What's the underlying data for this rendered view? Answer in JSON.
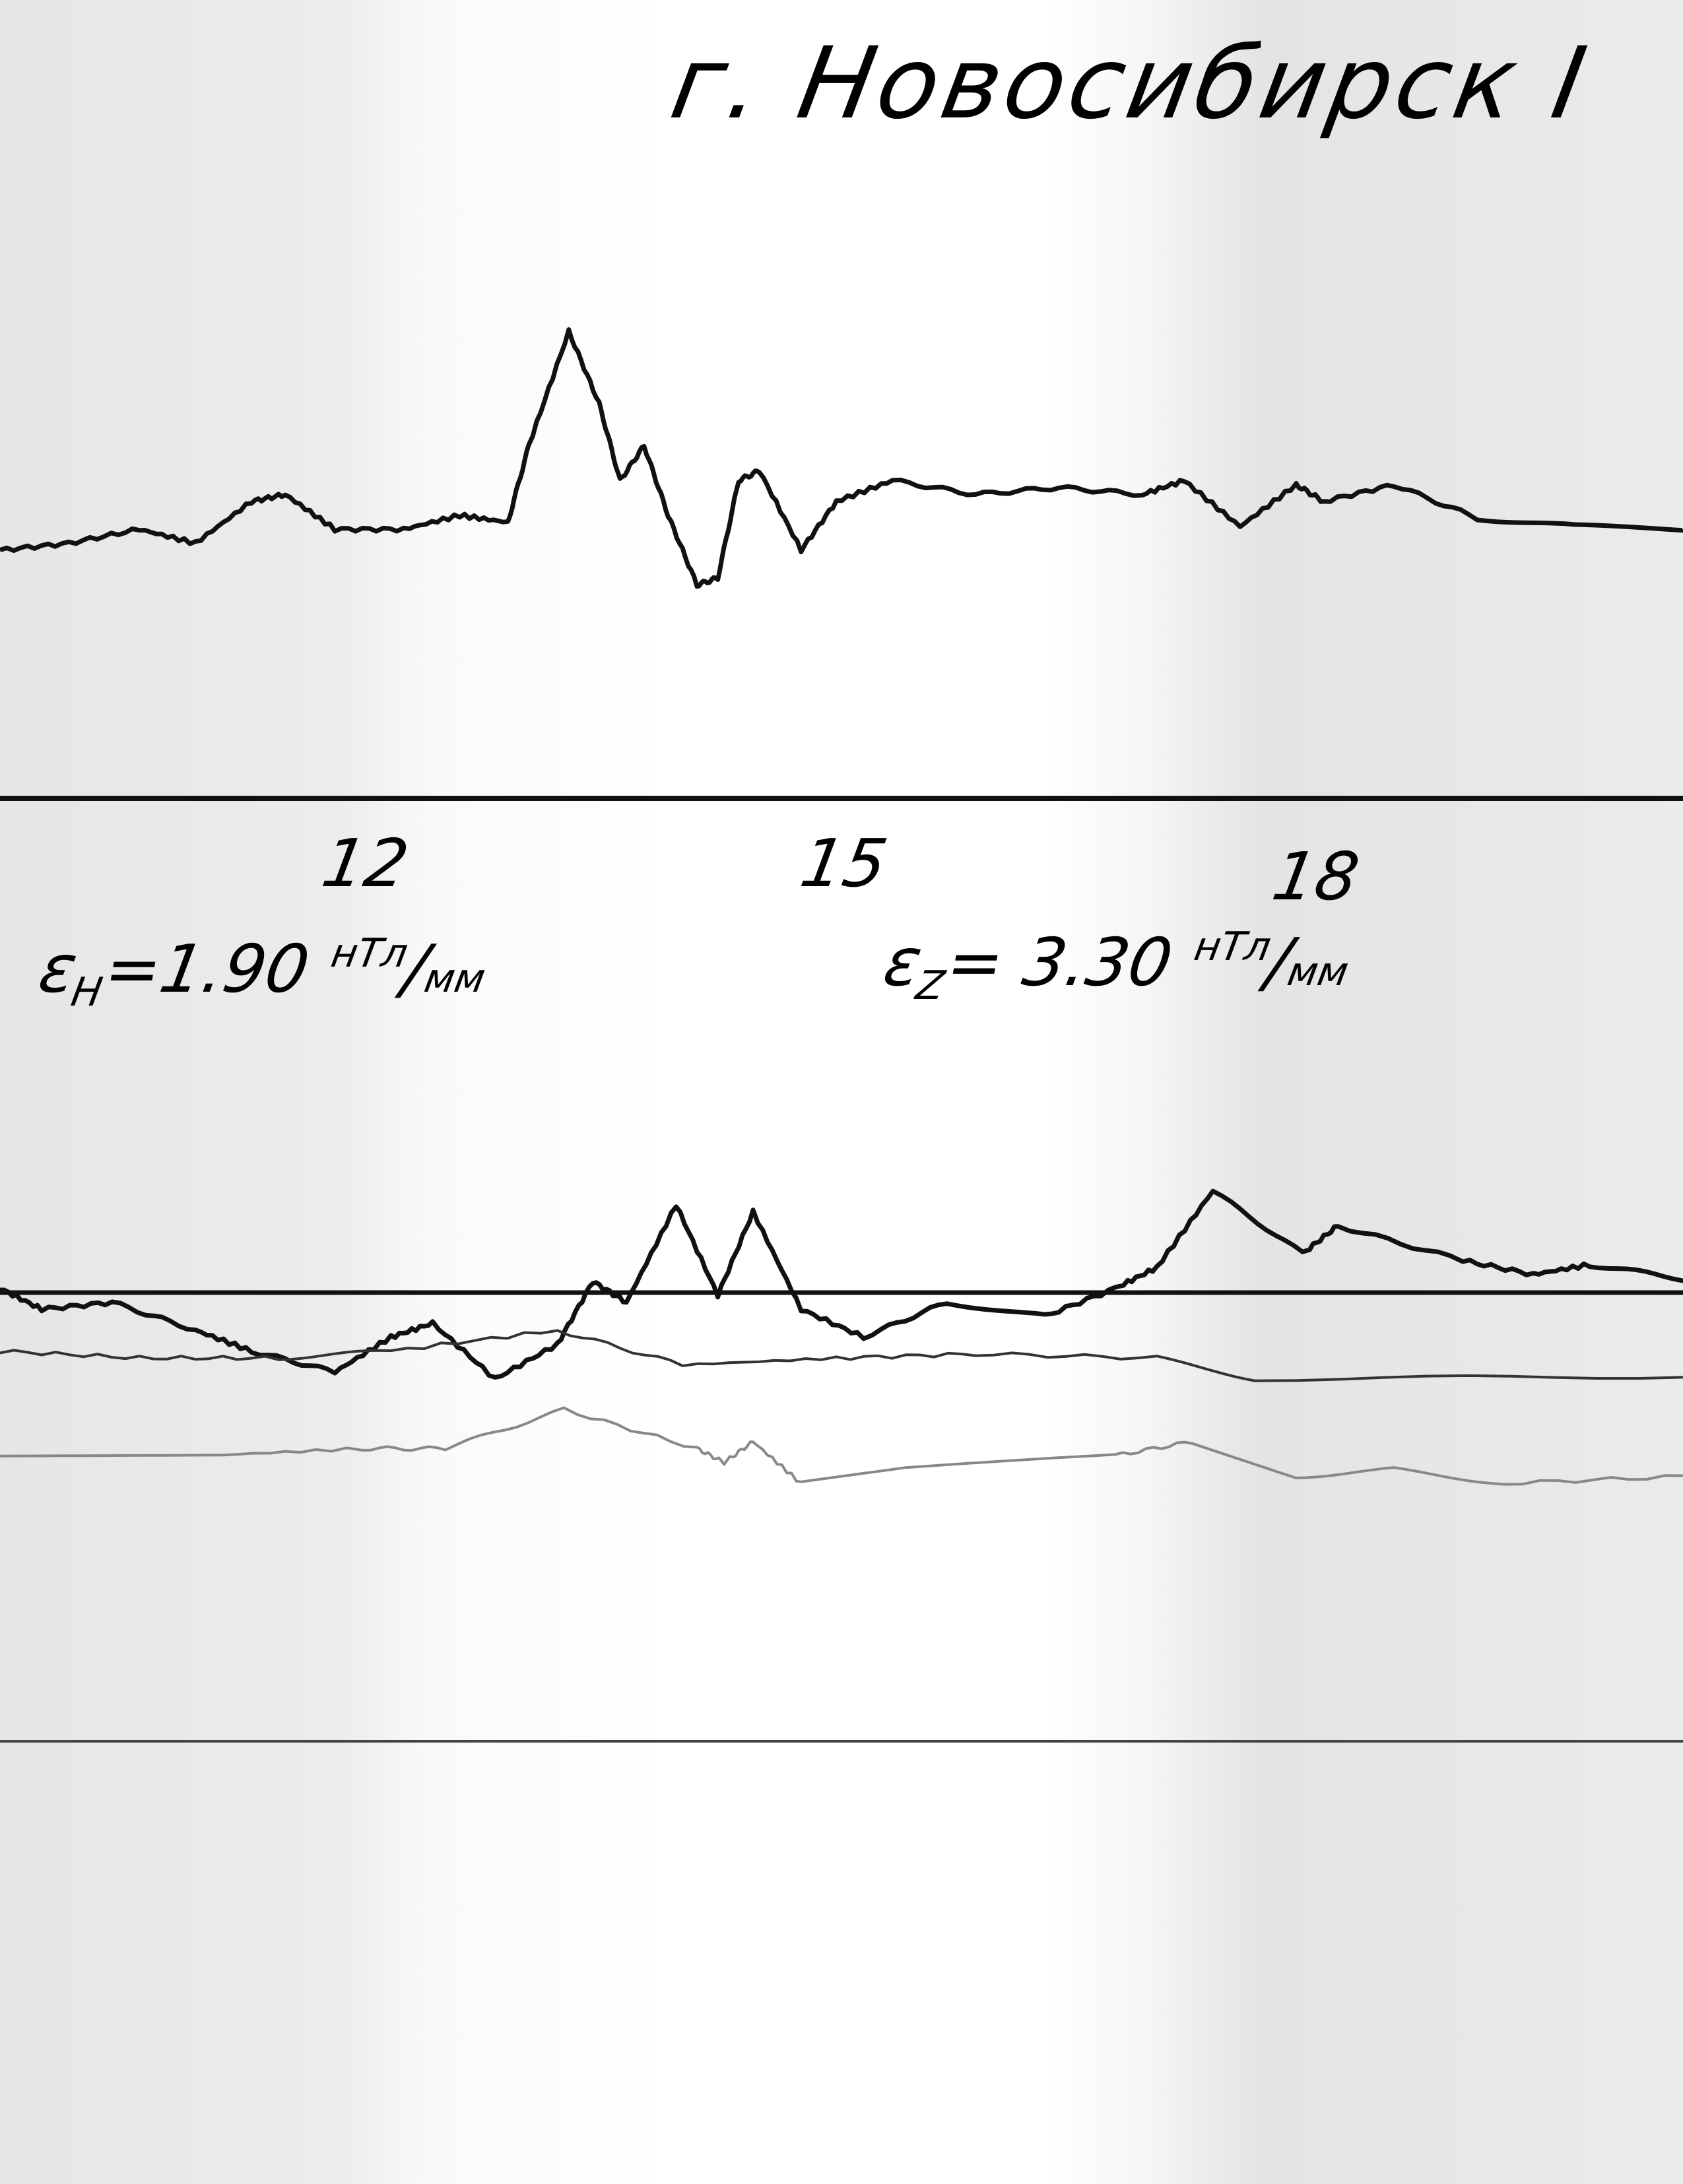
{
  "chart_data": {
    "type": "line",
    "title": "г. Новосибирск I",
    "x_ticks": [
      "12",
      "15",
      "18"
    ],
    "x_tick_values": [
      12,
      15,
      18
    ],
    "xlim": [
      9.78,
      20.28
    ],
    "grid": false,
    "scales": [
      {
        "symbol": "ε",
        "sub": "H",
        "eq": "=1.90",
        "unit_num": "нТл",
        "unit_den": "мм"
      },
      {
        "symbol": "ε",
        "sub": "Z",
        "eq": "= 3.30",
        "unit_num": "нТл",
        "unit_den": "мм"
      }
    ],
    "series": [
      {
        "points": [
          [
            9.78,
            -15
          ],
          [
            10.21,
            -10
          ],
          [
            10.65,
            0
          ],
          [
            11.0,
            -10
          ],
          [
            11.35,
            20
          ],
          [
            11.56,
            25
          ],
          [
            11.87,
            0
          ],
          [
            12.3,
            0
          ],
          [
            12.65,
            10
          ],
          [
            12.95,
            5
          ],
          [
            13.08,
            60
          ],
          [
            13.33,
            142
          ],
          [
            13.52,
            90
          ],
          [
            13.65,
            35
          ],
          [
            13.8,
            60
          ],
          [
            13.95,
            10
          ],
          [
            14.13,
            -40
          ],
          [
            14.26,
            -35
          ],
          [
            14.39,
            35
          ],
          [
            14.52,
            42
          ],
          [
            14.78,
            -15
          ],
          [
            15.0,
            20
          ],
          [
            15.35,
            35
          ],
          [
            15.87,
            25
          ],
          [
            16.39,
            30
          ],
          [
            16.91,
            25
          ],
          [
            17.17,
            35
          ],
          [
            17.52,
            2
          ],
          [
            17.87,
            32
          ],
          [
            18.04,
            20
          ],
          [
            18.48,
            32
          ],
          [
            19.0,
            8
          ],
          [
            19.61,
            2
          ],
          [
            20.28,
            0
          ]
        ]
      },
      {
        "points": [
          [
            9.78,
            3
          ],
          [
            10.04,
            -12
          ],
          [
            10.48,
            -7
          ],
          [
            11.0,
            -27
          ],
          [
            11.35,
            -42
          ],
          [
            11.87,
            -57
          ],
          [
            12.22,
            -32
          ],
          [
            12.48,
            -22
          ],
          [
            12.87,
            -62
          ],
          [
            13.26,
            -37
          ],
          [
            13.48,
            8
          ],
          [
            13.69,
            -7
          ],
          [
            14.0,
            63
          ],
          [
            14.26,
            -2
          ],
          [
            14.48,
            58
          ],
          [
            14.78,
            -12
          ],
          [
            15.17,
            -32
          ],
          [
            15.69,
            -7
          ],
          [
            16.3,
            -17
          ],
          [
            16.74,
            3
          ],
          [
            17.0,
            18
          ],
          [
            17.35,
            73
          ],
          [
            17.91,
            28
          ],
          [
            18.13,
            48
          ],
          [
            18.91,
            23
          ],
          [
            19.35,
            13
          ],
          [
            19.7,
            20
          ],
          [
            20.28,
            10
          ]
        ]
      },
      {
        "points": [
          [
            9.78,
            5
          ],
          [
            10.65,
            0
          ],
          [
            11.52,
            0
          ],
          [
            12.22,
            5
          ],
          [
            13.26,
            20
          ],
          [
            14.04,
            -5
          ],
          [
            15.0,
            0
          ],
          [
            15.87,
            3
          ],
          [
            17.0,
            0
          ],
          [
            17.61,
            -15
          ],
          [
            20.28,
            -13
          ]
        ]
      },
      {
        "points": [
          [
            9.78,
            0
          ],
          [
            11.08,
            0
          ],
          [
            12.04,
            5
          ],
          [
            12.56,
            5
          ],
          [
            13.3,
            33
          ],
          [
            14.13,
            5
          ],
          [
            14.3,
            -5
          ],
          [
            14.48,
            10
          ],
          [
            14.78,
            -20
          ],
          [
            15.43,
            -10
          ],
          [
            16.74,
            0
          ],
          [
            17.22,
            10
          ],
          [
            17.87,
            -15
          ],
          [
            18.48,
            -10
          ],
          [
            19.17,
            -20
          ],
          [
            20.28,
            -15
          ]
        ]
      }
    ]
  }
}
